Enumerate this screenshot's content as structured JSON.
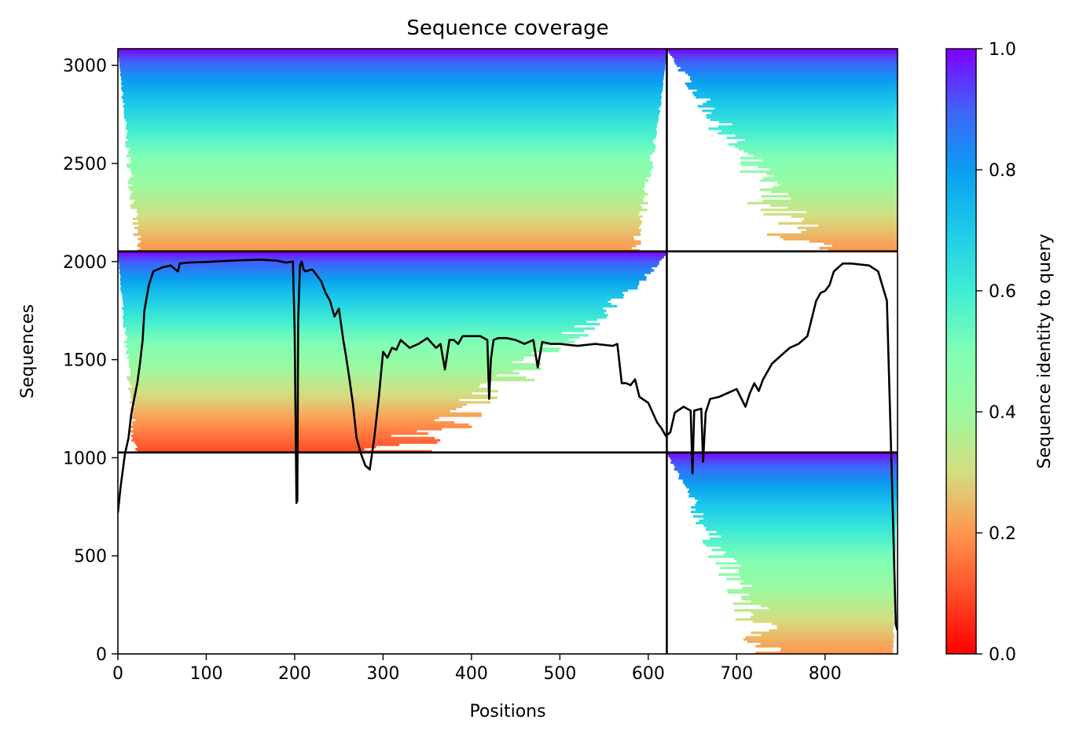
{
  "chart_data": {
    "type": "heatmap",
    "title": "Sequence coverage",
    "xlabel": "Positions",
    "ylabel": "Sequences",
    "xlim": [
      0,
      882
    ],
    "ylim": [
      0,
      3085
    ],
    "xticks": [
      0,
      100,
      200,
      300,
      400,
      500,
      600,
      700,
      800
    ],
    "yticks": [
      0,
      500,
      1000,
      1500,
      2000,
      2500,
      3000
    ],
    "grid": false,
    "colorbar": {
      "label": "Sequence identity to query",
      "range": [
        0,
        1
      ],
      "ticks": [
        "0.0",
        "0.2",
        "0.4",
        "0.6",
        "0.8",
        "1.0"
      ],
      "colormap": "rainbow_r"
    },
    "block_boundaries": {
      "x": 621,
      "y": [
        1027,
        2052
      ]
    },
    "blocks": [
      {
        "name": "top-left",
        "x": [
          0,
          621
        ],
        "y": [
          2052,
          3085
        ],
        "identity_top": 1.0,
        "identity_bottom": 0.2,
        "coverage_start": [
          0,
          28
        ],
        "coverage_end": [
          621,
          580
        ]
      },
      {
        "name": "top-right",
        "x": [
          621,
          882
        ],
        "y": [
          2052,
          3085
        ],
        "identity_top": 1.0,
        "identity_bottom": 0.2,
        "coverage_start": [
          621,
          820
        ],
        "coverage_end": [
          882,
          882
        ]
      },
      {
        "name": "middle-left",
        "x": [
          0,
          621
        ],
        "y": [
          1027,
          2052
        ],
        "identity_top": 1.0,
        "identity_bottom": 0.1,
        "coverage_start": [
          0,
          25
        ],
        "coverage_end": [
          621,
          260
        ]
      },
      {
        "name": "bottom-right",
        "x": [
          621,
          882
        ],
        "y": [
          0,
          1027
        ],
        "identity_top": 1.0,
        "identity_bottom": 0.2,
        "coverage_start": [
          621,
          770
        ],
        "coverage_end": [
          882,
          876
        ]
      }
    ],
    "coverage_line": {
      "name": "",
      "x": [
        0,
        3,
        8,
        12,
        15,
        18,
        22,
        25,
        28,
        30,
        35,
        40,
        50,
        60,
        65,
        68,
        70,
        80,
        100,
        130,
        160,
        180,
        190,
        198,
        200,
        202,
        203,
        204,
        206,
        208,
        210,
        212,
        220,
        230,
        235,
        240,
        245,
        250,
        255,
        258,
        262,
        266,
        270,
        275,
        280,
        285,
        290,
        295,
        300,
        305,
        310,
        315,
        320,
        330,
        340,
        350,
        360,
        365,
        370,
        375,
        380,
        385,
        390,
        400,
        410,
        418,
        420,
        422,
        425,
        430,
        440,
        450,
        460,
        470,
        475,
        480,
        490,
        500,
        520,
        540,
        560,
        565,
        570,
        575,
        580,
        585,
        590,
        600,
        610,
        615,
        620,
        625,
        630,
        640,
        648,
        650,
        652,
        660,
        662,
        665,
        670,
        680,
        690,
        700,
        710,
        715,
        720,
        725,
        730,
        740,
        750,
        760,
        770,
        780,
        790,
        795,
        800,
        805,
        810,
        815,
        820,
        830,
        850,
        860,
        870,
        875,
        878,
        880,
        882
      ],
      "y": [
        720,
        850,
        1020,
        1100,
        1220,
        1290,
        1380,
        1480,
        1600,
        1750,
        1880,
        1950,
        1970,
        1980,
        1960,
        1950,
        1990,
        1995,
        1998,
        2005,
        2010,
        2005,
        1995,
        2000,
        1650,
        770,
        780,
        1700,
        1980,
        2000,
        1960,
        1950,
        1960,
        1900,
        1840,
        1800,
        1720,
        1760,
        1600,
        1520,
        1400,
        1270,
        1100,
        1020,
        960,
        940,
        1100,
        1300,
        1540,
        1510,
        1560,
        1550,
        1600,
        1560,
        1580,
        1610,
        1560,
        1580,
        1450,
        1600,
        1600,
        1580,
        1620,
        1620,
        1620,
        1600,
        1300,
        1500,
        1600,
        1610,
        1610,
        1600,
        1580,
        1600,
        1460,
        1590,
        1580,
        1580,
        1570,
        1580,
        1570,
        1580,
        1380,
        1380,
        1370,
        1400,
        1310,
        1280,
        1180,
        1150,
        1110,
        1130,
        1230,
        1260,
        1240,
        920,
        1240,
        1250,
        980,
        1230,
        1300,
        1310,
        1330,
        1350,
        1260,
        1330,
        1380,
        1340,
        1400,
        1480,
        1520,
        1560,
        1580,
        1620,
        1800,
        1840,
        1850,
        1880,
        1950,
        1970,
        1990,
        1990,
        1980,
        1950,
        1800,
        1000,
        500,
        150,
        120
      ]
    }
  }
}
